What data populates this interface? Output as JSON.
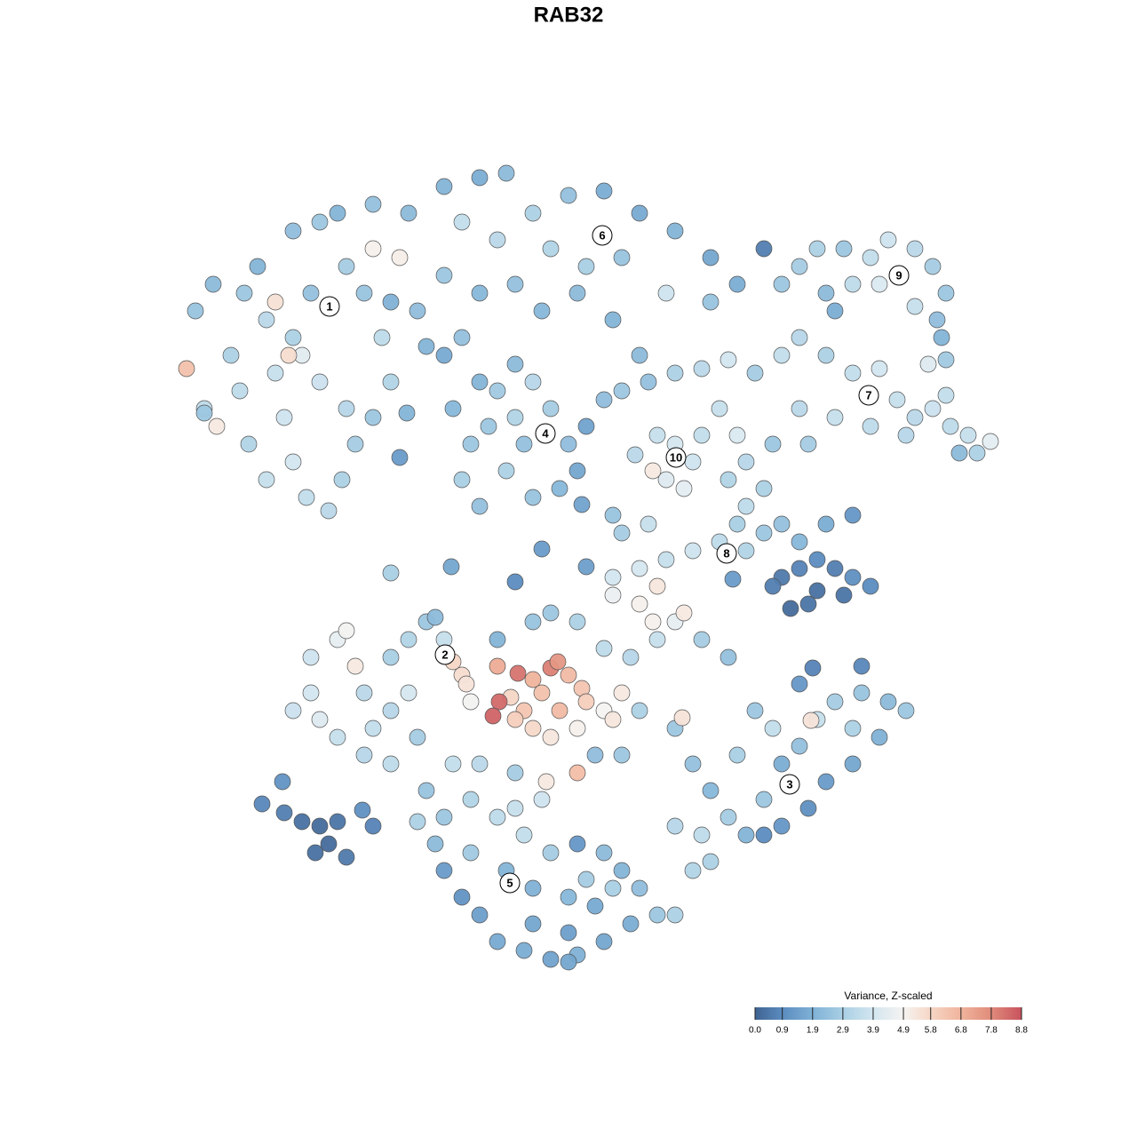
{
  "chart_data": {
    "type": "scatter",
    "title": "RAB32",
    "xlim": [
      195,
      1135
    ],
    "ylim": [
      1095,
      180
    ],
    "x": [
      220,
      240,
      210,
      230,
      244,
      260,
      275,
      290,
      300,
      310,
      320,
      330,
      345,
      370,
      385,
      400,
      390,
      360,
      340,
      330,
      350,
      390,
      420,
      410,
      430,
      440,
      420,
      300,
      280,
      270,
      330,
      360,
      450,
      310,
      325,
      380,
      420,
      460,
      500,
      540,
      570,
      520,
      560,
      600,
      640,
      680,
      720,
      760,
      800,
      830,
      700,
      660,
      620,
      580,
      540,
      500,
      470,
      440,
      480,
      520,
      650,
      690,
      720,
      610,
      750,
      800,
      860,
      510,
      530,
      520,
      540,
      560,
      580,
      600,
      620,
      640,
      650,
      630,
      600,
      570,
      550,
      590,
      660,
      580,
      500,
      540,
      740,
      760,
      780,
      750,
      770,
      735,
      790,
      715,
      680,
      700,
      730,
      760,
      790,
      820,
      850,
      880,
      810,
      900,
      930,
      960,
      990,
      1010,
      1030,
      1050,
      1070,
      1090,
      1115,
      1100,
      1080,
      1020,
      980,
      940,
      900,
      870,
      910,
      1045,
      1065,
      830,
      840,
      860,
      880,
      900,
      920,
      950,
      980,
      1000,
      1030,
      1050,
      1065,
      1055,
      1030,
      990,
      960,
      930,
      940,
      1060,
      1065,
      690,
      720,
      750,
      780,
      810,
      840,
      860,
      880,
      900,
      930,
      960,
      840,
      820,
      830,
      700,
      690,
      720,
      740,
      880,
      900,
      920,
      940,
      960,
      980,
      950,
      920,
      890,
      910,
      870,
      330,
      350,
      350,
      380,
      390,
      400,
      410,
      420,
      410,
      380,
      360,
      440,
      460,
      480,
      490,
      460,
      440,
      470,
      500,
      440,
      520,
      510,
      560,
      583,
      600,
      620,
      628,
      640,
      655,
      660,
      630,
      610,
      590,
      575,
      562,
      555,
      580,
      600,
      620,
      650,
      680,
      700,
      650,
      615,
      530,
      525,
      690,
      600,
      620,
      650,
      680,
      710,
      740,
      760,
      770,
      735,
      790,
      820,
      560,
      580,
      540,
      510,
      670,
      700,
      720,
      760,
      768,
      780,
      800,
      820,
      790,
      800,
      840,
      860,
      880,
      900,
      920,
      940,
      970,
      1000,
      1020,
      990,
      960,
      930,
      910,
      880,
      860,
      913,
      960,
      850,
      870,
      830,
      760,
      780,
      900,
      970,
      915,
      480,
      470,
      500,
      530,
      560,
      590,
      620,
      650,
      680,
      700,
      720,
      740,
      760,
      710,
      680,
      650,
      620,
      590,
      560,
      540,
      520,
      500,
      490,
      530,
      570,
      600,
      640,
      670,
      600,
      640,
      580,
      610,
      640,
      690,
      660,
      295,
      320,
      340,
      360,
      380,
      370,
      355,
      390,
      420,
      408,
      318,
      440,
      508,
      580,
      610,
      660,
      690,
      730,
      655,
      825,
      450,
      458,
      230
    ],
    "y": [
      350,
      320,
      415,
      460,
      480,
      400,
      330,
      300,
      360,
      420,
      470,
      520,
      560,
      575,
      540,
      500,
      460,
      430,
      400,
      380,
      330,
      300,
      280,
      330,
      380,
      430,
      470,
      540,
      500,
      440,
      260,
      250,
      290,
      340,
      400,
      240,
      230,
      240,
      210,
      200,
      195,
      250,
      270,
      240,
      220,
      215,
      240,
      260,
      290,
      320,
      290,
      300,
      280,
      320,
      330,
      310,
      350,
      340,
      390,
      380,
      330,
      360,
      400,
      350,
      330,
      340,
      280,
      460,
      500,
      540,
      570,
      440,
      410,
      430,
      460,
      500,
      530,
      550,
      560,
      530,
      480,
      500,
      480,
      470,
      400,
      430,
      490,
      500,
      520,
      540,
      550,
      530,
      490,
      512,
      450,
      440,
      430,
      420,
      415,
      405,
      420,
      400,
      460,
      380,
      400,
      420,
      415,
      450,
      470,
      460,
      480,
      490,
      497,
      510,
      510,
      490,
      480,
      470,
      460,
      500,
      500,
      410,
      445,
      490,
      520,
      550,
      320,
      300,
      280,
      280,
      290,
      270,
      280,
      300,
      330,
      360,
      345,
      320,
      320,
      330,
      350,
      380,
      405,
      650,
      640,
      630,
      620,
      610,
      620,
      600,
      590,
      610,
      590,
      580,
      570,
      540,
      590,
      600,
      670,
      680,
      660,
      650,
      640,
      630,
      640,
      650,
      660,
      670,
      665,
      685,
      680,
      660,
      800,
      780,
      740,
      720,
      710,
      750,
      780,
      820,
      850,
      830,
      810,
      740,
      720,
      700,
      695,
      780,
      800,
      830,
      720,
      860,
      760,
      745,
      750,
      758,
      765,
      752,
      745,
      760,
      775,
      790,
      800,
      780,
      800,
      785,
      790,
      806,
      810,
      820,
      830,
      820,
      800,
      780,
      870,
      880,
      790,
      770,
      810,
      700,
      690,
      700,
      730,
      740,
      720,
      700,
      690,
      700,
      720,
      740,
      720,
      870,
      860,
      860,
      850,
      850,
      800,
      820,
      808,
      860,
      890,
      920,
      940,
      970,
      940,
      900,
      860,
      840,
      810,
      790,
      780,
      790,
      800,
      830,
      860,
      880,
      910,
      930,
      940,
      811,
      820,
      800,
      820,
      850,
      930,
      980,
      770,
      750,
      752,
      890,
      925,
      920,
      900,
      920,
      940,
      960,
      950,
      960,
      980,
      1000,
      1030,
      1030,
      1040,
      1060,
      1075,
      1080,
      1070,
      1060,
      1030,
      1010,
      980,
      950,
      960,
      980,
      1000,
      1010,
      1020,
      1040,
      1050,
      910,
      900,
      1083,
      1000,
      990,
      905,
      915,
      925,
      930,
      925,
      950,
      960,
      965,
      930,
      912,
      880,
      645,
      638,
      655,
      618,
      638,
      580,
      590,
      568,
      652,
      515,
      465,
      465
    ],
    "values": [
      2.5,
      2.2,
      6.4,
      3.4,
      5.2,
      3.0,
      2.6,
      2.0,
      3.3,
      3.6,
      3.8,
      3.9,
      3.5,
      3.3,
      3.0,
      2.8,
      3.2,
      3.7,
      4.3,
      3.0,
      2.4,
      2.8,
      5.0,
      2.5,
      3.4,
      3.1,
      2.6,
      3.6,
      3.1,
      3.4,
      2.3,
      2.6,
      5.1,
      5.5,
      5.6,
      2.0,
      2.4,
      2.2,
      2.0,
      1.8,
      2.2,
      3.5,
      3.3,
      3.0,
      2.4,
      1.8,
      1.7,
      2.0,
      1.6,
      1.8,
      2.5,
      2.9,
      3.1,
      2.4,
      2.1,
      2.6,
      2.3,
      1.9,
      2.0,
      2.4,
      2.2,
      2.0,
      2.2,
      2.1,
      3.8,
      2.5,
      0.6,
      2.1,
      2.6,
      2.9,
      2.4,
      2.7,
      2.2,
      3.2,
      2.8,
      2.3,
      1.6,
      2.1,
      2.5,
      3.0,
      2.6,
      2.4,
      1.5,
      3.1,
      1.7,
      2.0,
      3.6,
      4.0,
      3.8,
      4.2,
      4.4,
      5.2,
      3.5,
      3.3,
      2.3,
      2.6,
      2.4,
      3.0,
      3.3,
      3.9,
      2.8,
      3.5,
      3.6,
      3.2,
      3.0,
      3.5,
      3.9,
      3.6,
      3.3,
      3.7,
      3.4,
      3.6,
      4.4,
      3.0,
      2.2,
      3.2,
      3.4,
      3.6,
      3.3,
      2.6,
      2.8,
      4.2,
      3.5,
      4.1,
      3.2,
      3.0,
      2.6,
      2.8,
      3.0,
      2.6,
      3.5,
      3.8,
      3.3,
      2.8,
      2.6,
      2.3,
      3.6,
      4.1,
      3.4,
      2.2,
      1.8,
      2.0,
      2.7,
      3.9,
      4.0,
      3.6,
      3.8,
      3.4,
      3.1,
      2.6,
      2.4,
      2.1,
      1.8,
      1.2,
      3.4,
      3.1,
      2.9,
      2.8,
      4.6,
      5.0,
      5.3,
      0.5,
      0.7,
      0.9,
      0.6,
      1.0,
      0.9,
      0.4,
      0.3,
      0.2,
      0.4,
      0.6,
      3.7,
      3.9,
      3.8,
      4.5,
      4.8,
      5.2,
      3.3,
      3.5,
      3.2,
      3.6,
      4.2,
      2.9,
      3.1,
      2.6,
      2.2,
      4.0,
      3.2,
      2.8,
      3.6,
      3.4,
      5.6,
      5.8,
      7.0,
      8.2,
      6.8,
      8.0,
      7.5,
      6.6,
      6.3,
      6.0,
      6.6,
      6.4,
      6.3,
      5.8,
      8.4,
      8.5,
      6.0,
      5.7,
      5.3,
      5.0,
      4.9,
      5.2,
      6.5,
      5.2,
      4.8,
      5.4,
      5.3,
      2.5,
      2.6,
      3.0,
      3.4,
      3.2,
      3.6,
      4.5,
      5.2,
      5.0,
      2.8,
      2.4,
      2.0,
      2.8,
      3.3,
      3.5,
      2.3,
      2.6,
      3.0,
      2.6,
      5.4,
      2.4,
      2.1,
      2.8,
      3.4,
      3.0,
      2.0,
      2.6,
      1.8,
      2.4,
      3.6,
      2.8,
      2.5,
      2.2,
      2.6,
      1.9,
      1.6,
      1.3,
      1.0,
      1.2,
      0.9,
      5.4,
      3.0,
      2.6,
      3.5,
      2.9,
      3.2,
      3.1,
      1.2,
      0.8,
      0.7,
      2.5,
      3.0,
      2.6,
      3.1,
      3.4,
      3.5,
      2.8,
      1.2,
      2.2,
      2.0,
      2.3,
      2.6,
      3.0,
      1.8,
      1.6,
      1.9,
      1.5,
      1.8,
      1.7,
      1.4,
      1.1,
      1.3,
      2.2,
      2.7,
      2.0,
      1.9,
      2.1,
      1.7,
      1.6,
      1.4,
      3.6,
      3.8,
      1.6,
      2.9,
      2.8,
      0.8,
      0.6,
      0.3,
      0.2,
      0.4,
      0.2,
      0.3,
      0.5,
      0.7,
      1.0,
      1.1,
      2.9,
      1.6,
      0.9,
      1.3,
      1.4,
      2.5,
      3.6,
      1.5,
      1.3,
      1.3,
      2.0,
      2.6
    ],
    "clusters": {
      "labels": [
        "1",
        "2",
        "3",
        "4",
        "5",
        "6",
        "7",
        "8",
        "9",
        "10"
      ],
      "x": [
        371,
        501,
        889,
        614,
        574,
        678,
        978,
        818,
        1012,
        761
      ],
      "y": [
        345,
        737,
        883,
        488,
        994,
        265,
        445,
        623,
        310,
        515
      ]
    },
    "colorbar": {
      "title": "Variance, Z-scaled",
      "lim": [
        0,
        8.8
      ],
      "ticks": [
        {
          "value": 0,
          "label": "0.0"
        },
        0.9,
        1.9,
        2.9,
        3.9,
        4.9,
        5.8,
        6.8,
        7.8,
        8.8
      ],
      "colors": [
        "#3f6391",
        "#5b8cc0",
        "#7fb1d6",
        "#a9cfe4",
        "#d3e6f0",
        "#f5f3f1",
        "#f6d6c5",
        "#f0b49c",
        "#e08b7a",
        "#c8525e"
      ]
    }
  }
}
